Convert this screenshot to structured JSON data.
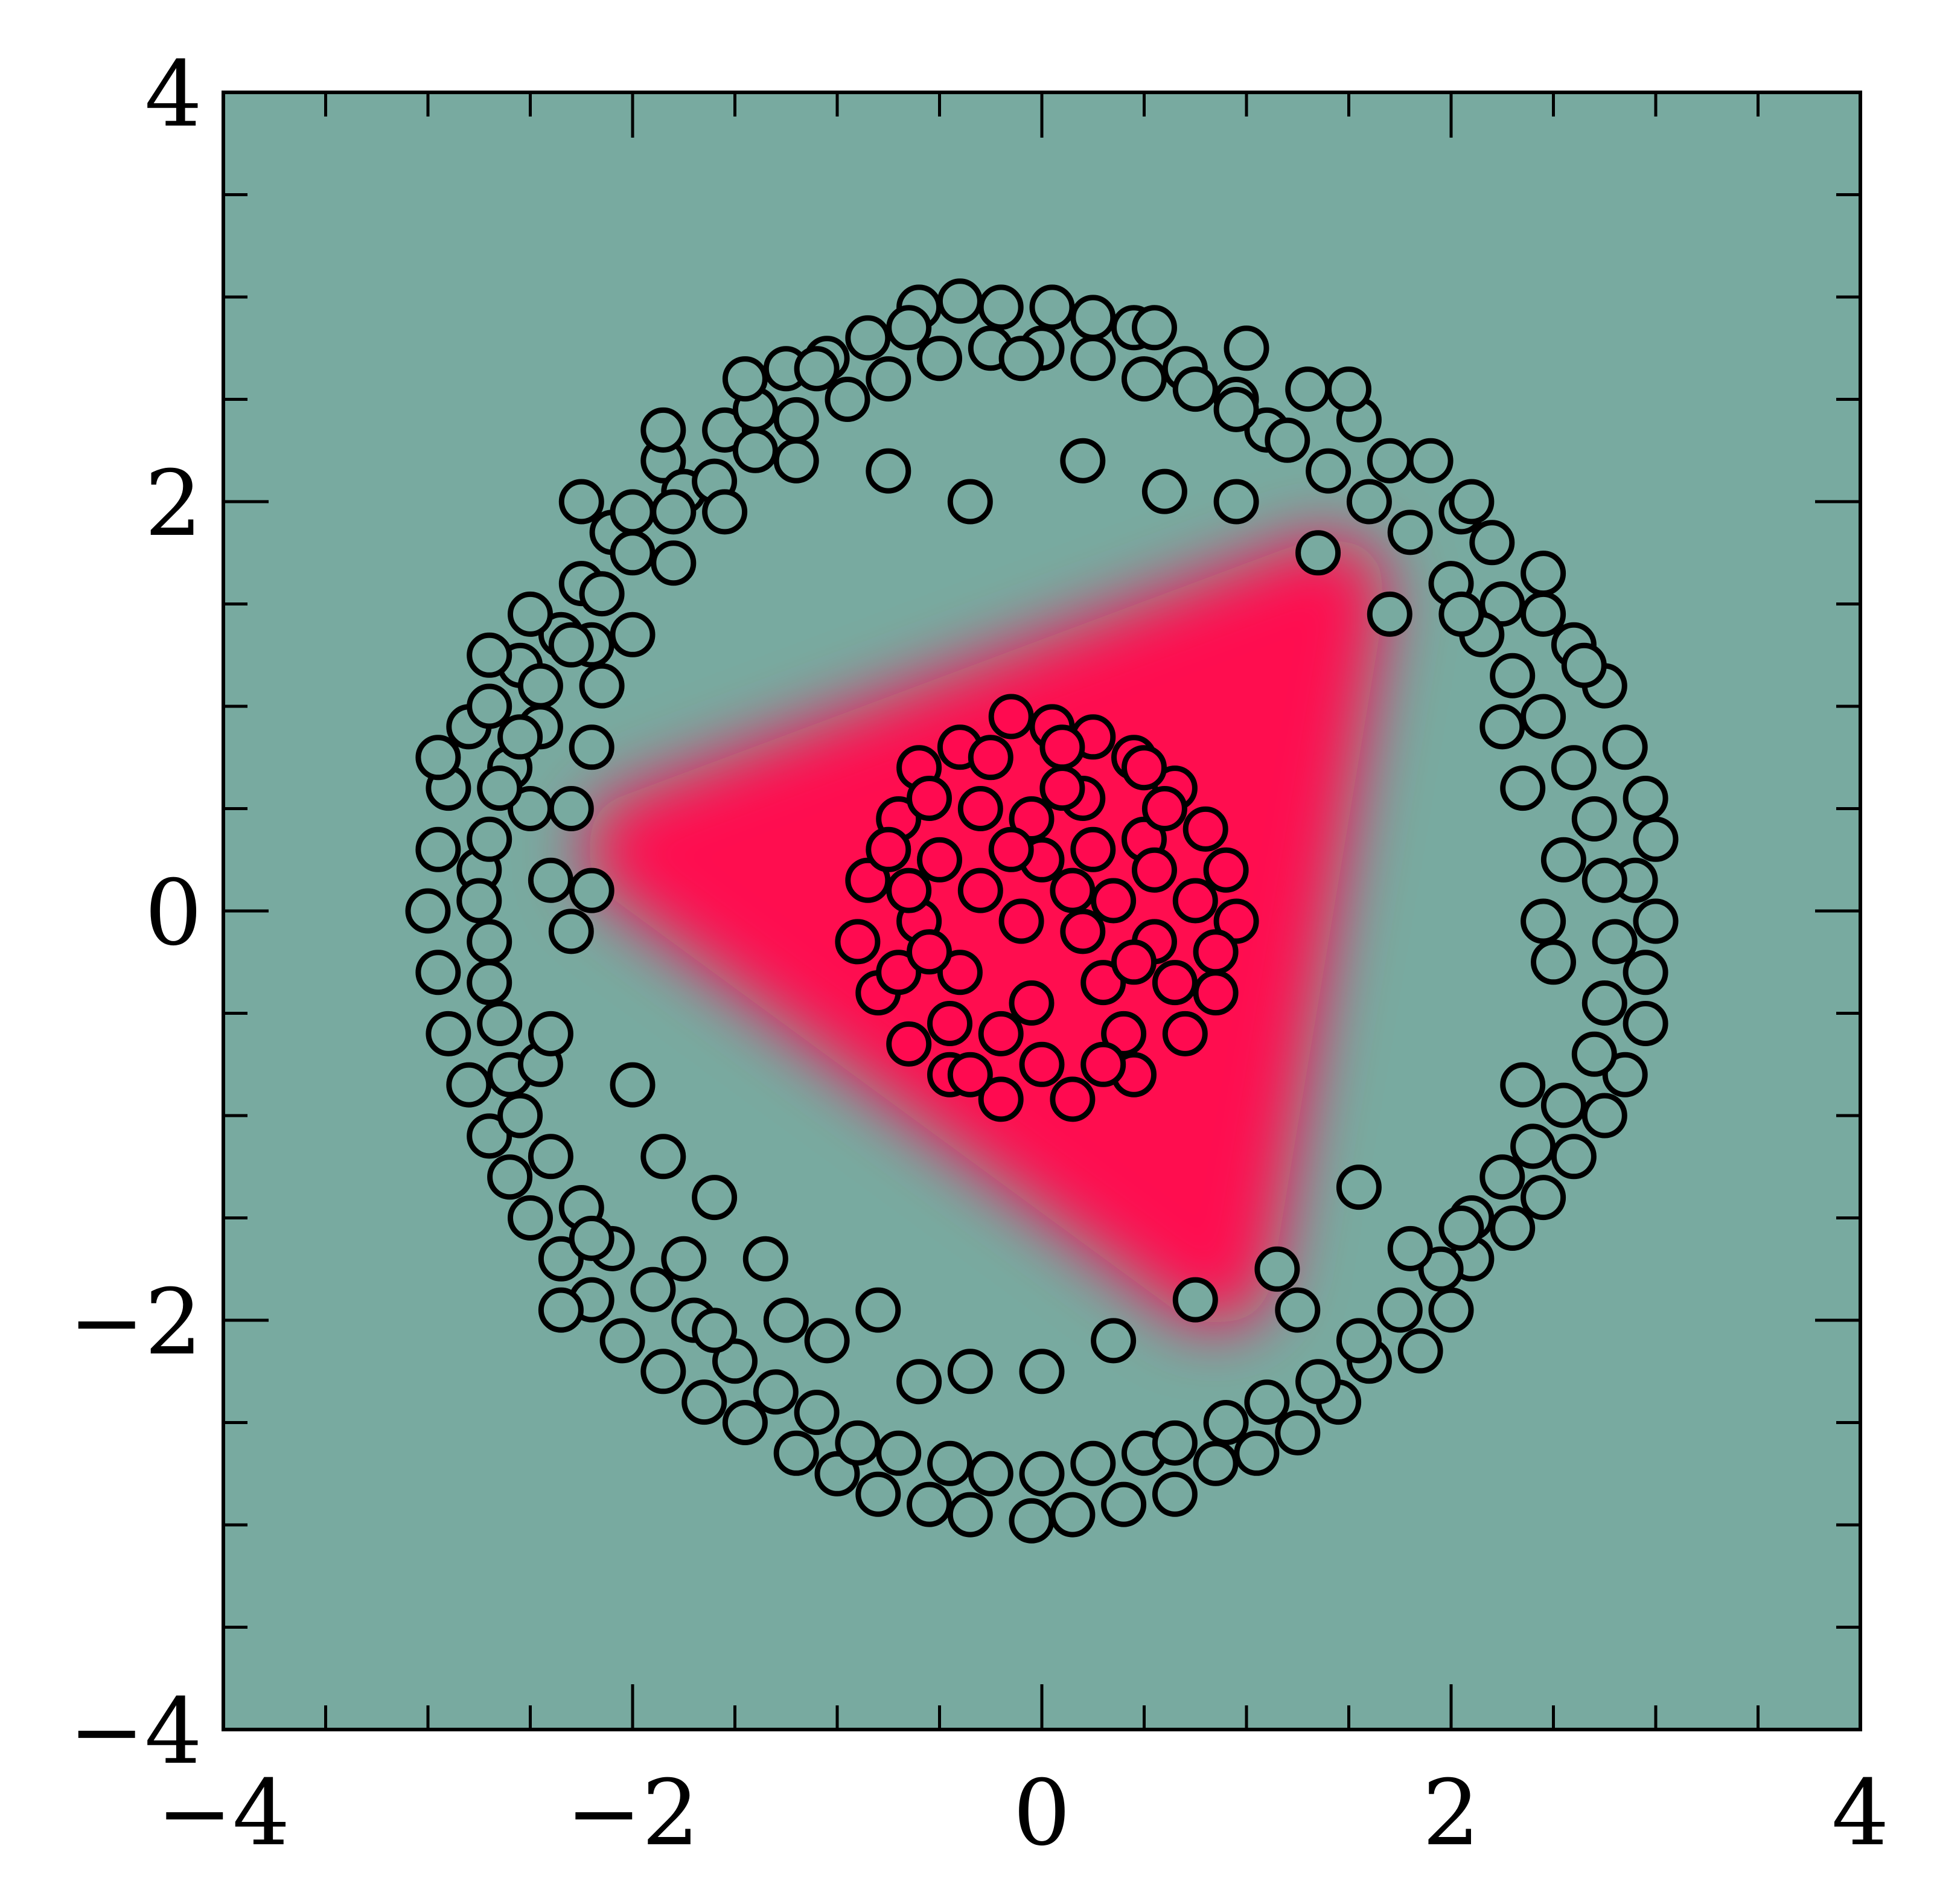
{
  "chart_data": {
    "type": "scatter",
    "title": "",
    "xlabel": "",
    "ylabel": "",
    "xlim": [
      -4,
      4
    ],
    "ylim": [
      -4,
      4
    ],
    "xticks": [
      -4,
      -2,
      0,
      2,
      4
    ],
    "yticks": [
      -4,
      -2,
      0,
      2,
      4
    ],
    "xtick_labels": [
      "−4",
      "−2",
      "0",
      "2",
      "4"
    ],
    "ytick_labels": [
      "−4",
      "−2",
      "0",
      "2",
      "4"
    ],
    "grid": false,
    "legend": "none",
    "decision_region": {
      "shape": "rounded-triangle",
      "vertices": [
        [
          -1.95,
          0.3
        ],
        [
          1.4,
          1.55
        ],
        [
          0.85,
          -1.75
        ]
      ],
      "inside_color": "#ff0a50",
      "outside_color": "#78aaa0"
    },
    "series": [
      {
        "class": "inner-disk",
        "color": "#ff0a50",
        "points": [
          [
            0.05,
            0.9
          ],
          [
            -0.15,
            0.95
          ],
          [
            0.25,
            0.85
          ],
          [
            -0.4,
            0.8
          ],
          [
            0.45,
            0.75
          ],
          [
            -0.6,
            0.7
          ],
          [
            0.65,
            0.6
          ],
          [
            -0.7,
            0.45
          ],
          [
            0.8,
            0.4
          ],
          [
            0.9,
            0.2
          ],
          [
            -0.85,
            0.15
          ],
          [
            -0.9,
            -0.15
          ],
          [
            0.95,
            -0.05
          ],
          [
            -0.8,
            -0.4
          ],
          [
            0.85,
            -0.4
          ],
          [
            -0.65,
            -0.65
          ],
          [
            0.7,
            -0.6
          ],
          [
            -0.45,
            -0.8
          ],
          [
            0.45,
            -0.8
          ],
          [
            -0.2,
            -0.92
          ],
          [
            0.15,
            -0.92
          ],
          [
            -0.3,
            0.5
          ],
          [
            0.2,
            0.55
          ],
          [
            0.5,
            0.35
          ],
          [
            -0.5,
            0.25
          ],
          [
            0.0,
            0.25
          ],
          [
            -0.1,
            -0.05
          ],
          [
            0.35,
            0.05
          ],
          [
            -0.4,
            -0.3
          ],
          [
            0.3,
            -0.35
          ],
          [
            -0.05,
            -0.45
          ],
          [
            0.55,
            -0.15
          ],
          [
            -0.6,
            -0.05
          ],
          [
            0.1,
            0.6
          ],
          [
            -0.25,
            0.75
          ],
          [
            0.6,
            0.5
          ],
          [
            -0.7,
            -0.3
          ],
          [
            0.4,
            -0.6
          ],
          [
            -0.2,
            -0.6
          ],
          [
            0.75,
            0.05
          ],
          [
            -0.75,
            0.3
          ],
          [
            0.2,
            -0.1
          ],
          [
            -0.3,
            0.1
          ],
          [
            0.0,
            -0.75
          ],
          [
            0.5,
            0.7
          ],
          [
            -0.55,
            0.55
          ],
          [
            0.85,
            -0.2
          ],
          [
            -0.45,
            -0.55
          ],
          [
            0.25,
            0.3
          ],
          [
            -0.05,
            0.45
          ],
          [
            0.45,
            -0.25
          ],
          [
            0.1,
            0.8
          ],
          [
            -0.35,
            -0.8
          ],
          [
            0.65,
            -0.35
          ],
          [
            -0.65,
            0.1
          ],
          [
            0.3,
            -0.75
          ],
          [
            -0.15,
            0.3
          ],
          [
            0.15,
            0.1
          ],
          [
            -0.55,
            -0.2
          ],
          [
            0.55,
            0.2
          ]
        ]
      },
      {
        "class": "outer-ring",
        "color": "#78aaa0",
        "points": [
          [
            -3.0,
            0.0
          ],
          [
            -2.95,
            0.3
          ],
          [
            -2.9,
            0.6
          ],
          [
            -2.95,
            -0.3
          ],
          [
            -2.9,
            -0.6
          ],
          [
            -2.75,
            0.2
          ],
          [
            -2.7,
            -0.15
          ],
          [
            -2.8,
            0.9
          ],
          [
            -2.7,
            1.0
          ],
          [
            -2.55,
            1.2
          ],
          [
            -2.6,
            0.7
          ],
          [
            -2.5,
            0.5
          ],
          [
            -2.45,
            0.9
          ],
          [
            -2.35,
            1.35
          ],
          [
            -2.2,
            1.3
          ],
          [
            -2.25,
            1.6
          ],
          [
            -2.1,
            1.85
          ],
          [
            -2.0,
            1.95
          ],
          [
            -1.85,
            2.2
          ],
          [
            -1.75,
            2.05
          ],
          [
            -1.55,
            2.35
          ],
          [
            -1.4,
            2.45
          ],
          [
            -1.25,
            2.65
          ],
          [
            -1.05,
            2.7
          ],
          [
            -0.85,
            2.8
          ],
          [
            -0.6,
            2.95
          ],
          [
            -0.4,
            2.98
          ],
          [
            -0.2,
            2.95
          ],
          [
            0.05,
            2.95
          ],
          [
            0.25,
            2.9
          ],
          [
            0.45,
            2.85
          ],
          [
            0.7,
            2.65
          ],
          [
            0.95,
            2.5
          ],
          [
            1.1,
            2.35
          ],
          [
            1.3,
            2.55
          ],
          [
            1.55,
            2.4
          ],
          [
            1.7,
            2.2
          ],
          [
            1.9,
            2.2
          ],
          [
            2.05,
            1.95
          ],
          [
            2.2,
            1.8
          ],
          [
            2.25,
            1.5
          ],
          [
            2.45,
            1.45
          ],
          [
            2.6,
            1.3
          ],
          [
            2.75,
            1.1
          ],
          [
            2.85,
            0.8
          ],
          [
            2.95,
            0.55
          ],
          [
            3.0,
            0.35
          ],
          [
            2.9,
            0.15
          ],
          [
            3.0,
            -0.05
          ],
          [
            2.95,
            -0.3
          ],
          [
            2.95,
            -0.55
          ],
          [
            2.85,
            -0.8
          ],
          [
            2.75,
            -1.0
          ],
          [
            2.6,
            -1.2
          ],
          [
            2.45,
            -1.4
          ],
          [
            2.3,
            -1.55
          ],
          [
            2.1,
            -1.7
          ],
          [
            2.0,
            -1.95
          ],
          [
            1.85,
            -2.15
          ],
          [
            1.6,
            -2.2
          ],
          [
            1.45,
            -2.4
          ],
          [
            1.25,
            -2.55
          ],
          [
            1.05,
            -2.65
          ],
          [
            0.85,
            -2.7
          ],
          [
            0.65,
            -2.85
          ],
          [
            0.4,
            -2.9
          ],
          [
            0.15,
            -2.95
          ],
          [
            -0.05,
            -2.98
          ],
          [
            -0.35,
            -2.95
          ],
          [
            -0.55,
            -2.9
          ],
          [
            -0.8,
            -2.85
          ],
          [
            -1.0,
            -2.75
          ],
          [
            -1.2,
            -2.65
          ],
          [
            -1.45,
            -2.5
          ],
          [
            -1.65,
            -2.4
          ],
          [
            -1.85,
            -2.25
          ],
          [
            -2.05,
            -2.1
          ],
          [
            -2.2,
            -1.9
          ],
          [
            -2.35,
            -1.7
          ],
          [
            -2.5,
            -1.5
          ],
          [
            -2.6,
            -1.3
          ],
          [
            -2.7,
            -1.1
          ],
          [
            -2.8,
            -0.85
          ],
          [
            -2.6,
            -0.8
          ],
          [
            -2.55,
            -1.0
          ],
          [
            -2.4,
            -1.2
          ],
          [
            -2.25,
            -1.45
          ],
          [
            -2.1,
            -1.65
          ],
          [
            -1.9,
            -1.85
          ],
          [
            -1.7,
            -2.0
          ],
          [
            -1.5,
            -2.2
          ],
          [
            -1.3,
            -2.35
          ],
          [
            -1.1,
            -2.45
          ],
          [
            -0.9,
            -2.6
          ],
          [
            -0.7,
            -2.65
          ],
          [
            -0.45,
            -2.7
          ],
          [
            -0.25,
            -2.75
          ],
          [
            0.0,
            -2.75
          ],
          [
            0.25,
            -2.7
          ],
          [
            0.5,
            -2.65
          ],
          [
            0.9,
            -2.5
          ],
          [
            1.1,
            -2.4
          ],
          [
            1.35,
            -2.3
          ],
          [
            1.55,
            -2.1
          ],
          [
            1.75,
            -1.95
          ],
          [
            1.95,
            -1.75
          ],
          [
            2.1,
            -1.5
          ],
          [
            2.25,
            -1.3
          ],
          [
            2.4,
            -1.15
          ],
          [
            2.55,
            -0.95
          ],
          [
            2.7,
            -0.7
          ],
          [
            2.75,
            -0.45
          ],
          [
            2.8,
            -0.15
          ],
          [
            2.75,
            0.15
          ],
          [
            2.7,
            0.45
          ],
          [
            2.6,
            0.7
          ],
          [
            2.45,
            0.95
          ],
          [
            2.3,
            1.15
          ],
          [
            2.15,
            1.35
          ],
          [
            2.0,
            1.6
          ],
          [
            1.8,
            1.85
          ],
          [
            1.6,
            2.0
          ],
          [
            1.4,
            2.15
          ],
          [
            1.2,
            2.3
          ],
          [
            0.95,
            2.45
          ],
          [
            0.75,
            2.55
          ],
          [
            0.5,
            2.6
          ],
          [
            0.25,
            2.7
          ],
          [
            0.0,
            2.75
          ],
          [
            -0.25,
            2.75
          ],
          [
            -0.5,
            2.7
          ],
          [
            -0.75,
            2.6
          ],
          [
            -0.95,
            2.5
          ],
          [
            -1.2,
            2.4
          ],
          [
            -1.4,
            2.25
          ],
          [
            -1.6,
            2.1
          ],
          [
            -1.8,
            1.95
          ],
          [
            -2.0,
            1.75
          ],
          [
            -2.15,
            1.55
          ],
          [
            -2.3,
            1.3
          ],
          [
            -2.45,
            1.1
          ],
          [
            -2.55,
            0.85
          ],
          [
            -2.65,
            0.6
          ],
          [
            -2.7,
            0.35
          ],
          [
            -2.75,
            0.05
          ],
          [
            -2.7,
            -0.35
          ],
          [
            -2.65,
            -0.55
          ],
          [
            -2.45,
            -0.75
          ],
          [
            -2.4,
            0.15
          ],
          [
            -2.3,
            -0.1
          ],
          [
            -2.0,
            -0.85
          ],
          [
            -1.85,
            -1.2
          ],
          [
            -1.6,
            -1.4
          ],
          [
            -1.35,
            -1.7
          ],
          [
            -1.05,
            -2.1
          ],
          [
            -0.35,
            -2.25
          ],
          [
            0.0,
            -2.25
          ],
          [
            0.35,
            -2.1
          ],
          [
            0.75,
            -1.9
          ],
          [
            1.15,
            -1.75
          ],
          [
            1.55,
            -1.35
          ],
          [
            2.35,
            -0.85
          ],
          [
            2.45,
            -0.05
          ],
          [
            2.35,
            0.6
          ],
          [
            2.25,
            0.9
          ],
          [
            2.05,
            1.45
          ],
          [
            1.7,
            1.45
          ],
          [
            1.35,
            1.75
          ],
          [
            0.95,
            2.0
          ],
          [
            0.6,
            2.05
          ],
          [
            0.2,
            2.2
          ],
          [
            -0.35,
            2.0
          ],
          [
            -0.75,
            2.15
          ],
          [
            -1.2,
            2.2
          ],
          [
            -1.55,
            1.95
          ],
          [
            -1.8,
            1.7
          ],
          [
            -2.0,
            1.35
          ],
          [
            -2.15,
            1.1
          ],
          [
            -2.2,
            0.8
          ],
          [
            -2.3,
            0.5
          ],
          [
            -2.2,
            0.1
          ],
          [
            -2.4,
            -0.6
          ],
          [
            -2.2,
            -1.6
          ],
          [
            -2.35,
            -1.95
          ],
          [
            -1.75,
            -1.7
          ],
          [
            -1.6,
            -2.05
          ],
          [
            -1.25,
            -2.0
          ],
          [
            -0.8,
            -1.95
          ],
          [
            -0.6,
            -2.3
          ],
          [
            0.65,
            -2.6
          ],
          [
            1.25,
            -1.95
          ],
          [
            1.8,
            -1.65
          ],
          [
            2.05,
            -1.55
          ],
          [
            2.5,
            -0.25
          ],
          [
            2.55,
            0.25
          ],
          [
            2.65,
            1.2
          ],
          [
            2.45,
            1.65
          ],
          [
            2.1,
            2.0
          ],
          [
            1.5,
            2.55
          ],
          [
            1.0,
            2.75
          ],
          [
            0.55,
            2.85
          ],
          [
            -0.1,
            2.7
          ],
          [
            -0.65,
            2.85
          ],
          [
            -1.1,
            2.65
          ],
          [
            -1.45,
            2.6
          ],
          [
            -1.85,
            2.35
          ],
          [
            -2.25,
            2.0
          ],
          [
            -2.5,
            1.45
          ],
          [
            -2.7,
            1.25
          ],
          [
            -2.95,
            0.75
          ]
        ]
      }
    ]
  }
}
